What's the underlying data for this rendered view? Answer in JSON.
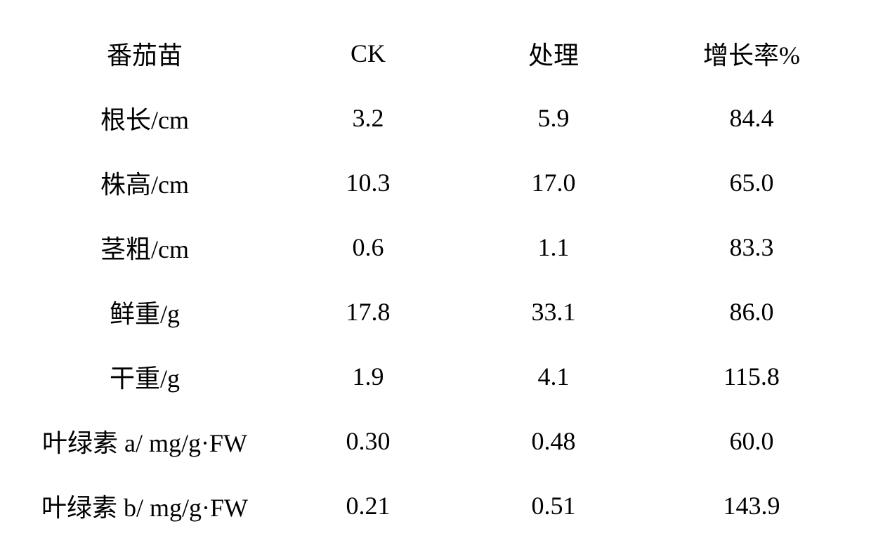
{
  "table": {
    "type": "table",
    "background_color": "#ffffff",
    "text_color": "#000000",
    "font_size": 36,
    "font_family_cjk": "SimSun",
    "font_family_numeric": "Times New Roman",
    "columns": [
      {
        "key": "label",
        "header": "番茄苗",
        "width_pct": 31,
        "align": "center"
      },
      {
        "key": "ck",
        "header": "CK",
        "width_pct": 22,
        "align": "center"
      },
      {
        "key": "treatment",
        "header": "处理",
        "width_pct": 22,
        "align": "center"
      },
      {
        "key": "growth",
        "header": "增长率%",
        "width_pct": 25,
        "align": "center"
      }
    ],
    "rows": [
      {
        "label": "根长/cm",
        "ck": "3.2",
        "treatment": "5.9",
        "growth": "84.4"
      },
      {
        "label": "株高/cm",
        "ck": "10.3",
        "treatment": "17.0",
        "growth": "65.0"
      },
      {
        "label": "茎粗/cm",
        "ck": "0.6",
        "treatment": "1.1",
        "growth": "83.3"
      },
      {
        "label": "鲜重/g",
        "ck": "17.8",
        "treatment": "33.1",
        "growth": "86.0"
      },
      {
        "label": "干重/g",
        "ck": "1.9",
        "treatment": "4.1",
        "growth": "115.8"
      },
      {
        "label": "叶绿素 a/ mg/g·FW",
        "ck": "0.30",
        "treatment": "0.48",
        "growth": "60.0"
      },
      {
        "label": "叶绿素 b/ mg/g·FW",
        "ck": "0.21",
        "treatment": "0.51",
        "growth": "143.9"
      }
    ]
  }
}
